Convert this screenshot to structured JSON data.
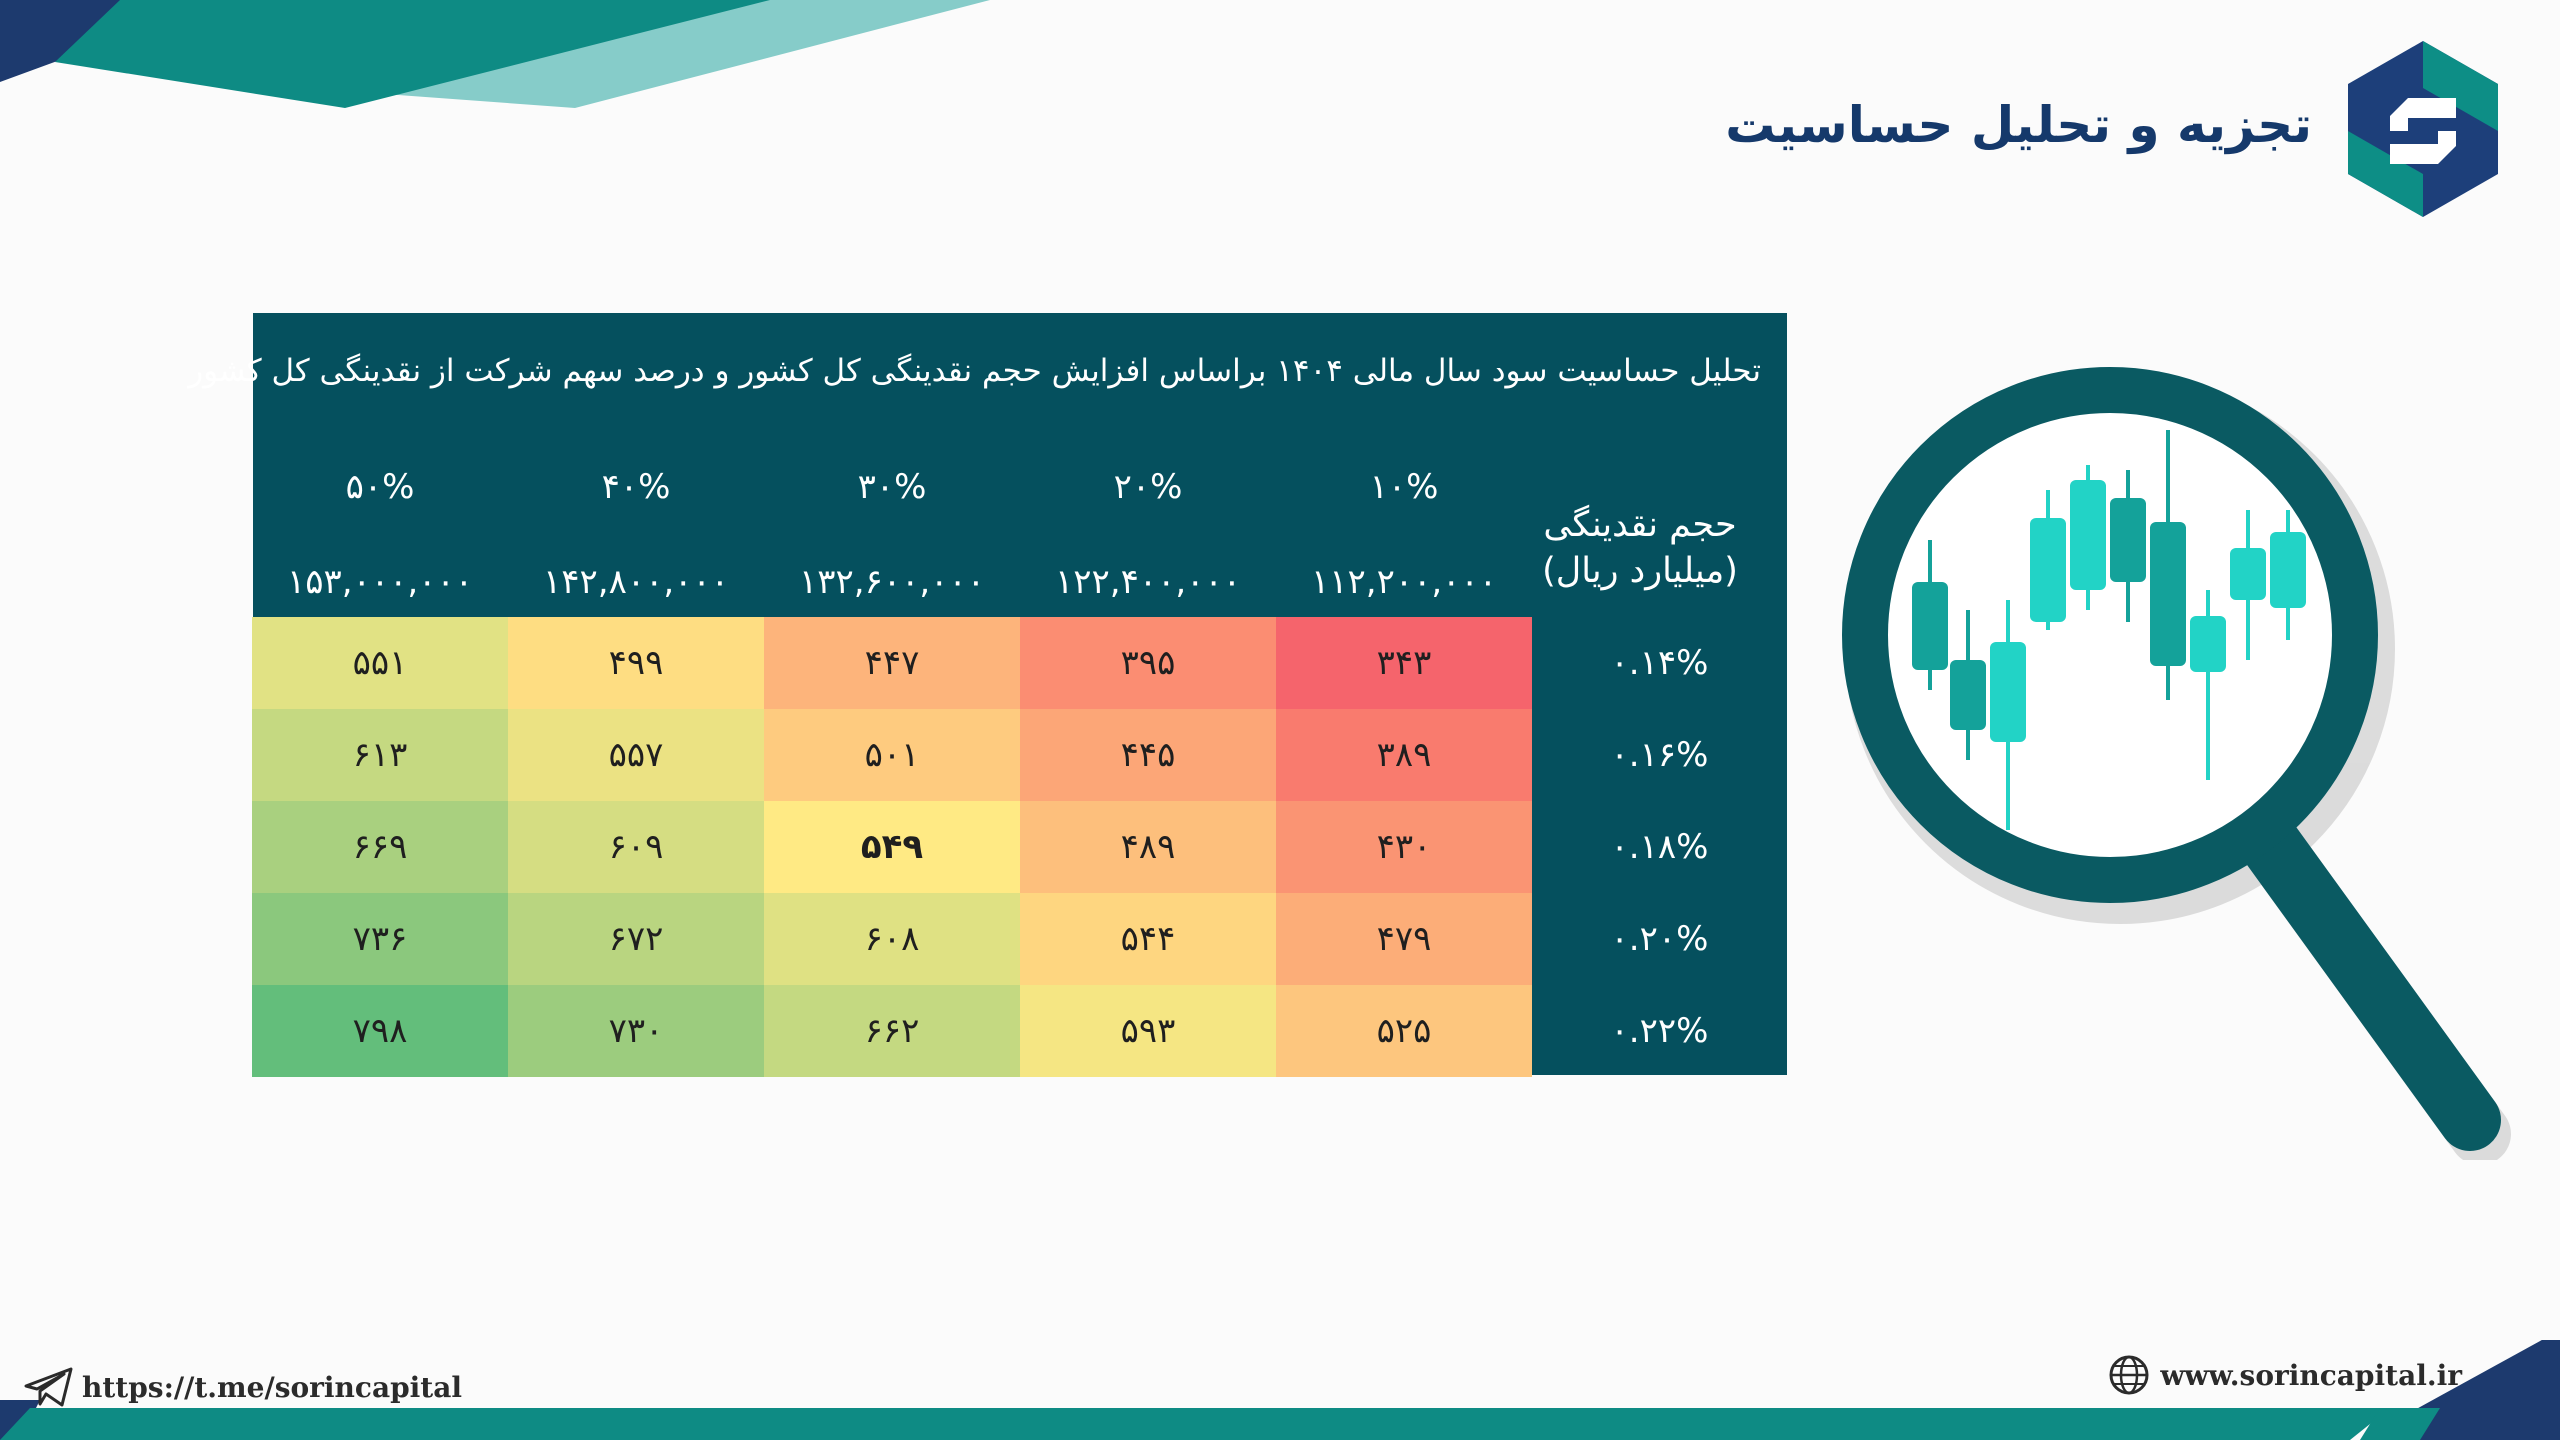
{
  "slide": {
    "title": "تجزیه و تحلیل حساسیت"
  },
  "table": {
    "caption": "تحلیل حساسیت سود سال مالی ۱۴۰۴ براساس افزایش حجم نقدینگی کل کشور و درصد سهم شرکت از نقدینگی کل کشور",
    "corner_label_line1": "حجم نقدینگی",
    "corner_label_line2": "(میلیارد ریال)",
    "columns": [
      {
        "pct": "۱۰%",
        "volume": "۱۱۲,۲۰۰,۰۰۰"
      },
      {
        "pct": "۲۰%",
        "volume": "۱۲۲,۴۰۰,۰۰۰"
      },
      {
        "pct": "۳۰%",
        "volume": "۱۳۲,۶۰۰,۰۰۰"
      },
      {
        "pct": "۴۰%",
        "volume": "۱۴۲,۸۰۰,۰۰۰"
      },
      {
        "pct": "۵۰%",
        "volume": "۱۵۳,۰۰۰,۰۰۰"
      }
    ],
    "rows": [
      {
        "label": "۰.۱۴%",
        "cells": [
          "۳۴۳",
          "۳۹۵",
          "۴۴۷",
          "۴۹۹",
          "۵۵۱"
        ]
      },
      {
        "label": "۰.۱۶%",
        "cells": [
          "۳۸۹",
          "۴۴۵",
          "۵۰۱",
          "۵۵۷",
          "۶۱۳"
        ]
      },
      {
        "label": "۰.۱۸%",
        "cells": [
          "۴۳۰",
          "۴۸۹",
          "۵۴۹",
          "۶۰۹",
          "۶۶۹"
        ]
      },
      {
        "label": "۰.۲۰%",
        "cells": [
          "۴۷۹",
          "۵۴۴",
          "۶۰۸",
          "۶۷۲",
          "۷۳۶"
        ]
      },
      {
        "label": "۰.۲۲%",
        "cells": [
          "۵۲۵",
          "۵۹۳",
          "۶۶۲",
          "۷۳۰",
          "۷۹۸"
        ]
      }
    ],
    "cell_colors": [
      [
        "#f5646c",
        "#fb8d72",
        "#fdb47b",
        "#fedd82",
        "#e1e284"
      ],
      [
        "#f97b6e",
        "#fca677",
        "#fecb7f",
        "#ebe283",
        "#c5d981"
      ],
      [
        "#fa9473",
        "#fdbf7c",
        "#ffea84",
        "#d5dd82",
        "#a9d07f"
      ],
      [
        "#fcad78",
        "#fed680",
        "#dfe183",
        "#b9d580",
        "#8bc87d"
      ],
      [
        "#fdc67e",
        "#f5e683",
        "#c4d981",
        "#9ccc7e",
        "#63be7b"
      ]
    ],
    "highlight_cell": "۵۴۹"
  },
  "footer": {
    "telegram": "https://t.me/sorincapital",
    "website": "www.sorincapital.ir"
  },
  "icons": {
    "telegram": "paper-plane-icon",
    "website": "globe-icon",
    "logo": "sorin-capital-logo",
    "illustration": "magnifying-glass-candlestick-icon"
  },
  "colors": {
    "table_bg": "#05505e",
    "title": "#15396b",
    "accent_teal": "#0d8e86",
    "accent_navy": "#1d3f7a"
  }
}
